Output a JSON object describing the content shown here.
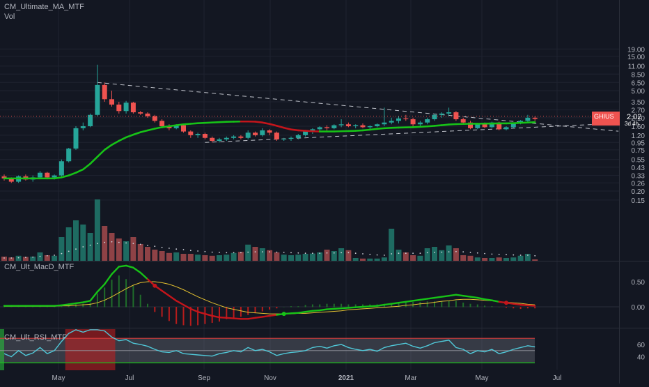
{
  "indicators": {
    "main": "CM_Ultimate_MA_MTF",
    "vol": "Vol",
    "macd": "CM_Ult_MacD_MTF",
    "rsi": "CM_Ult_RSI_MTF"
  },
  "price_tag": {
    "symbol": "GHIUS",
    "value": "2.02",
    "countdown": "3d 4h"
  },
  "colors": {
    "background": "#131722",
    "grid": "#1f2330",
    "axis_text": "#b2b5be",
    "up": "#26a69a",
    "down": "#ef5350",
    "ma_up": "#17c317",
    "ma_down": "#c4151b",
    "signal": "#e4c130",
    "rsi_line": "#50c8d8",
    "rsi_band": "#9598a1"
  },
  "chart_data": [
    {
      "type": "candlestick",
      "scale": "log",
      "y_ticks": [
        "19.00",
        "15.00",
        "11.00",
        "8.50",
        "6.50",
        "5.00",
        "3.50",
        "2.70",
        "2.10",
        "1.60",
        "1.20",
        "0.95",
        "0.75",
        "0.55",
        "0.43",
        "0.33",
        "0.26",
        "0.20",
        "0.15"
      ],
      "x_ticks": [
        "May",
        "Jul",
        "Sep",
        "Nov",
        "2021",
        "Mar",
        "May",
        "Jul"
      ],
      "ohlc": [
        [
          0.32,
          0.34,
          0.28,
          0.3
        ],
        [
          0.3,
          0.31,
          0.26,
          0.27
        ],
        [
          0.27,
          0.33,
          0.26,
          0.32
        ],
        [
          0.32,
          0.34,
          0.28,
          0.29
        ],
        [
          0.29,
          0.33,
          0.27,
          0.31
        ],
        [
          0.31,
          0.38,
          0.3,
          0.36
        ],
        [
          0.36,
          0.37,
          0.3,
          0.31
        ],
        [
          0.31,
          0.34,
          0.29,
          0.33
        ],
        [
          0.33,
          0.55,
          0.32,
          0.52
        ],
        [
          0.52,
          0.8,
          0.5,
          0.78
        ],
        [
          0.78,
          1.6,
          0.75,
          1.5
        ],
        [
          1.5,
          1.8,
          1.4,
          1.6
        ],
        [
          1.6,
          2.4,
          1.55,
          2.3
        ],
        [
          2.3,
          11.5,
          2.2,
          6.0
        ],
        [
          6.0,
          6.5,
          3.5,
          3.8
        ],
        [
          3.8,
          5.0,
          3.0,
          3.2
        ],
        [
          3.2,
          3.5,
          2.4,
          2.6
        ],
        [
          2.6,
          3.6,
          2.4,
          3.4
        ],
        [
          3.4,
          3.5,
          2.4,
          2.5
        ],
        [
          2.5,
          2.6,
          2.3,
          2.4
        ],
        [
          2.4,
          2.5,
          2.1,
          2.2
        ],
        [
          2.2,
          2.3,
          1.8,
          1.9
        ],
        [
          1.9,
          2.0,
          1.5,
          1.6
        ],
        [
          1.6,
          1.7,
          1.4,
          1.5
        ],
        [
          1.5,
          1.7,
          1.45,
          1.65
        ],
        [
          1.65,
          1.7,
          1.3,
          1.35
        ],
        [
          1.35,
          1.4,
          1.1,
          1.2
        ],
        [
          1.2,
          1.3,
          1.1,
          1.25
        ],
        [
          1.25,
          1.3,
          1.05,
          1.1
        ],
        [
          1.1,
          1.15,
          0.95,
          1.0
        ],
        [
          1.0,
          1.1,
          0.95,
          1.05
        ],
        [
          1.05,
          1.15,
          1.0,
          1.1
        ],
        [
          1.1,
          1.2,
          1.05,
          1.15
        ],
        [
          1.15,
          1.2,
          1.05,
          1.1
        ],
        [
          1.1,
          1.4,
          1.05,
          1.3
        ],
        [
          1.3,
          1.35,
          1.15,
          1.2
        ],
        [
          1.2,
          1.5,
          1.15,
          1.4
        ],
        [
          1.4,
          1.45,
          1.2,
          1.3
        ],
        [
          1.3,
          1.35,
          1.0,
          1.05
        ],
        [
          1.05,
          1.1,
          1.0,
          1.07
        ],
        [
          1.07,
          1.15,
          1.0,
          1.1
        ],
        [
          1.1,
          1.25,
          1.05,
          1.2
        ],
        [
          1.2,
          1.4,
          1.15,
          1.35
        ],
        [
          1.35,
          1.5,
          1.25,
          1.45
        ],
        [
          1.45,
          1.6,
          1.35,
          1.55
        ],
        [
          1.55,
          1.65,
          1.4,
          1.5
        ],
        [
          1.5,
          1.7,
          1.45,
          1.65
        ],
        [
          1.65,
          2.0,
          1.55,
          1.7
        ],
        [
          1.7,
          1.8,
          1.55,
          1.6
        ],
        [
          1.6,
          1.7,
          1.5,
          1.65
        ],
        [
          1.65,
          1.75,
          1.5,
          1.55
        ],
        [
          1.55,
          1.65,
          1.45,
          1.6
        ],
        [
          1.6,
          1.75,
          1.55,
          1.7
        ],
        [
          1.7,
          2.9,
          1.6,
          1.8
        ],
        [
          1.8,
          2.1,
          1.7,
          1.9
        ],
        [
          1.9,
          2.2,
          1.75,
          2.05
        ],
        [
          2.05,
          2.3,
          1.9,
          2.0
        ],
        [
          2.0,
          2.1,
          1.6,
          1.7
        ],
        [
          1.7,
          1.9,
          1.6,
          1.8
        ],
        [
          1.8,
          2.1,
          1.7,
          2.0
        ],
        [
          2.0,
          2.4,
          1.9,
          2.3
        ],
        [
          2.3,
          2.5,
          2.1,
          2.4
        ],
        [
          2.4,
          2.9,
          2.2,
          2.5
        ],
        [
          2.5,
          2.6,
          1.9,
          2.0
        ],
        [
          2.0,
          2.1,
          1.7,
          1.8
        ],
        [
          1.8,
          1.9,
          1.45,
          1.5
        ],
        [
          1.5,
          1.75,
          1.45,
          1.7
        ],
        [
          1.7,
          1.8,
          1.5,
          1.55
        ],
        [
          1.55,
          1.85,
          1.5,
          1.8
        ],
        [
          1.8,
          1.85,
          1.4,
          1.45
        ],
        [
          1.45,
          1.6,
          1.4,
          1.55
        ],
        [
          1.55,
          1.8,
          1.5,
          1.75
        ],
        [
          1.75,
          1.95,
          1.7,
          1.9
        ],
        [
          1.9,
          2.3,
          1.85,
          2.1
        ],
        [
          2.1,
          2.2,
          1.9,
          2.02
        ]
      ],
      "ma": [
        0.3,
        0.3,
        0.3,
        0.3,
        0.3,
        0.3,
        0.3,
        0.3,
        0.31,
        0.33,
        0.36,
        0.4,
        0.48,
        0.6,
        0.75,
        0.88,
        1.0,
        1.12,
        1.22,
        1.32,
        1.4,
        1.48,
        1.55,
        1.6,
        1.65,
        1.7,
        1.73,
        1.76,
        1.78,
        1.8,
        1.82,
        1.84,
        1.85,
        1.86,
        1.86,
        1.85,
        1.8,
        1.72,
        1.62,
        1.52,
        1.44,
        1.4,
        1.38,
        1.36,
        1.35,
        1.35,
        1.35,
        1.36,
        1.37,
        1.38,
        1.4,
        1.43,
        1.47,
        1.5,
        1.52,
        1.53,
        1.54,
        1.55,
        1.57,
        1.59,
        1.62,
        1.65,
        1.69,
        1.71,
        1.72,
        1.73,
        1.73,
        1.74,
        1.74,
        1.75,
        1.75,
        1.76,
        1.78,
        1.8,
        1.82
      ],
      "ma_color_index": [
        1,
        1,
        1,
        1,
        1,
        1,
        1,
        1,
        1,
        1,
        1,
        1,
        1,
        1,
        1,
        1,
        1,
        1,
        1,
        1,
        1,
        1,
        1,
        1,
        1,
        1,
        1,
        1,
        1,
        1,
        1,
        1,
        1,
        1,
        0,
        0,
        0,
        0,
        0,
        0,
        0,
        0,
        0,
        0,
        0,
        1,
        1,
        1,
        1,
        1,
        1,
        1,
        1,
        1,
        1,
        1,
        1,
        1,
        1,
        1,
        1,
        1,
        1,
        1,
        1,
        1,
        1,
        1,
        1,
        1,
        1,
        1,
        1,
        1,
        1
      ],
      "trendlines": [
        [
          [
            13,
            6.5
          ],
          [
            74,
            1.75
          ]
        ],
        [
          [
            28,
            0.95
          ],
          [
            74,
            1.55
          ]
        ]
      ],
      "volume": [
        0.15,
        0.12,
        0.18,
        0.14,
        0.15,
        0.3,
        0.2,
        0.18,
        0.85,
        1.2,
        1.45,
        1.3,
        1.0,
        2.2,
        1.25,
        1.0,
        0.8,
        0.7,
        0.85,
        0.6,
        0.5,
        0.4,
        0.35,
        0.28,
        0.3,
        0.25,
        0.25,
        0.22,
        0.2,
        0.18,
        0.2,
        0.22,
        0.28,
        0.32,
        0.58,
        0.5,
        0.45,
        0.38,
        0.3,
        0.22,
        0.2,
        0.22,
        0.25,
        0.26,
        0.3,
        0.4,
        0.35,
        0.45,
        0.38,
        0.1,
        0.08,
        0.08,
        0.08,
        0.12,
        1.15,
        0.4,
        0.3,
        0.2,
        0.18,
        0.45,
        0.5,
        0.38,
        0.55,
        0.45,
        0.2,
        0.18,
        0.12,
        0.1,
        0.1,
        0.12,
        0.1,
        0.12,
        0.18,
        0.25,
        0.05
      ],
      "vol_avg": [
        0.1,
        0.1,
        0.11,
        0.12,
        0.13,
        0.16,
        0.18,
        0.2,
        0.26,
        0.34,
        0.42,
        0.5,
        0.56,
        0.62,
        0.66,
        0.68,
        0.66,
        0.64,
        0.62,
        0.59,
        0.55,
        0.52,
        0.48,
        0.45,
        0.42,
        0.4,
        0.37,
        0.35,
        0.33,
        0.31,
        0.3,
        0.29,
        0.29,
        0.29,
        0.31,
        0.32,
        0.32,
        0.32,
        0.31,
        0.3,
        0.29,
        0.28,
        0.27,
        0.27,
        0.27,
        0.28,
        0.28,
        0.29,
        0.29,
        0.27,
        0.25,
        0.23,
        0.21,
        0.2,
        0.25,
        0.27,
        0.27,
        0.27,
        0.27,
        0.29,
        0.3,
        0.31,
        0.32,
        0.33,
        0.32,
        0.3,
        0.28,
        0.26,
        0.24,
        0.23,
        0.22,
        0.21,
        0.2,
        0.2,
        0.18
      ]
    },
    {
      "type": "line",
      "name": "macd",
      "y_ticks": [
        "0.50",
        "0.00"
      ],
      "macd": [
        0.02,
        0.02,
        0.02,
        0.02,
        0.02,
        0.02,
        0.02,
        0.02,
        0.03,
        0.05,
        0.07,
        0.09,
        0.12,
        0.3,
        0.45,
        0.65,
        0.8,
        0.82,
        0.78,
        0.68,
        0.55,
        0.42,
        0.32,
        0.22,
        0.12,
        0.04,
        -0.04,
        -0.1,
        -0.14,
        -0.18,
        -0.21,
        -0.22,
        -0.23,
        -0.24,
        -0.24,
        -0.22,
        -0.2,
        -0.18,
        -0.16,
        -0.14,
        -0.13,
        -0.12,
        -0.1,
        -0.08,
        -0.07,
        -0.05,
        -0.04,
        -0.03,
        -0.02,
        -0.01,
        0.0,
        0.01,
        0.02,
        0.04,
        0.06,
        0.08,
        0.1,
        0.12,
        0.14,
        0.16,
        0.18,
        0.2,
        0.22,
        0.24,
        0.22,
        0.2,
        0.18,
        0.15,
        0.13,
        0.1,
        0.08,
        0.06,
        0.04,
        0.03,
        0.02
      ],
      "signal": [
        0.01,
        0.01,
        0.01,
        0.01,
        0.01,
        0.01,
        0.01,
        0.01,
        0.02,
        0.02,
        0.03,
        0.04,
        0.05,
        0.08,
        0.13,
        0.2,
        0.28,
        0.36,
        0.43,
        0.48,
        0.5,
        0.5,
        0.48,
        0.45,
        0.4,
        0.34,
        0.27,
        0.2,
        0.14,
        0.08,
        0.03,
        -0.02,
        -0.05,
        -0.08,
        -0.11,
        -0.12,
        -0.13,
        -0.14,
        -0.14,
        -0.14,
        -0.14,
        -0.13,
        -0.13,
        -0.12,
        -0.11,
        -0.1,
        -0.09,
        -0.08,
        -0.06,
        -0.05,
        -0.04,
        -0.03,
        -0.02,
        -0.01,
        0.0,
        0.01,
        0.03,
        0.04,
        0.06,
        0.07,
        0.09,
        0.11,
        0.12,
        0.14,
        0.15,
        0.15,
        0.14,
        0.13,
        0.12,
        0.1,
        0.09,
        0.08,
        0.07,
        0.05,
        0.04
      ]
    },
    {
      "type": "line",
      "name": "rsi",
      "y_ticks": [
        "60",
        "40"
      ],
      "overbought": 70,
      "oversold": 30,
      "rsi": [
        45,
        40,
        50,
        42,
        46,
        55,
        45,
        50,
        65,
        78,
        88,
        80,
        85,
        90,
        82,
        72,
        66,
        68,
        62,
        60,
        57,
        52,
        48,
        47,
        50,
        45,
        44,
        43,
        42,
        41,
        45,
        47,
        50,
        48,
        55,
        50,
        52,
        48,
        42,
        45,
        47,
        48,
        50,
        55,
        57,
        54,
        58,
        60,
        55,
        52,
        50,
        52,
        49,
        55,
        58,
        60,
        62,
        57,
        54,
        58,
        63,
        65,
        67,
        55,
        52,
        45,
        50,
        48,
        52,
        45,
        48,
        52,
        55,
        58,
        56
      ]
    }
  ]
}
